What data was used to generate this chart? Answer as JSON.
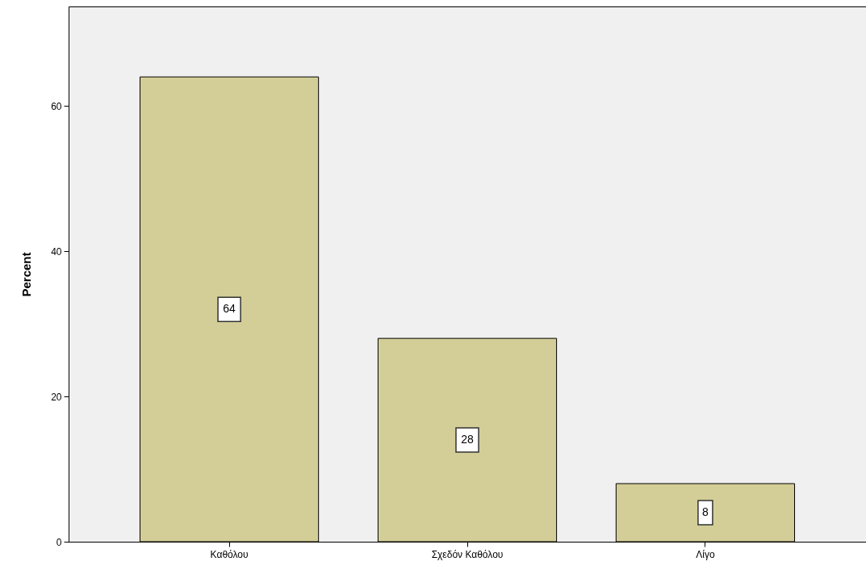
{
  "chart_data": {
    "type": "bar",
    "ylabel": "Percent",
    "categories": [
      "Καθόλου",
      "Σχεδόν Καθόλου",
      "Λίγο"
    ],
    "values": [
      64,
      28,
      8
    ],
    "color": "#d3ce97",
    "ylim": [
      0,
      73.7
    ],
    "yticks": [
      0,
      20,
      40,
      60
    ],
    "grid": false,
    "data_labels": true
  }
}
